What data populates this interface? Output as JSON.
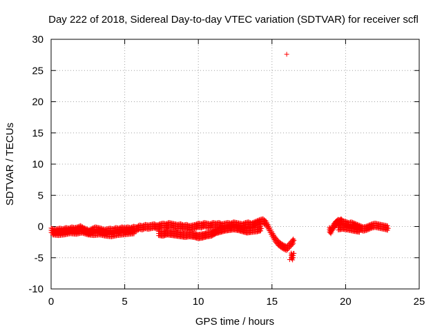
{
  "chart_data": {
    "type": "scatter",
    "title": "Day 222 of 2018, Sidereal Day-to-day VTEC variation (SDTVAR) for receiver scfl",
    "xlabel": "GPS time / hours",
    "ylabel": "SDTVAR / TECUs",
    "xlim": [
      0,
      25
    ],
    "ylim": [
      -10,
      30
    ],
    "xticks": [
      "0",
      "5",
      "10",
      "15",
      "20",
      "25"
    ],
    "yticks": [
      "-10",
      "-5",
      "0",
      "5",
      "10",
      "15",
      "20",
      "25",
      "30"
    ],
    "grid": true,
    "marker": "+",
    "color": "#ff0000",
    "series": [
      {
        "points": [
          [
            0.0,
            -0.6
          ],
          [
            0.2,
            -0.8
          ],
          [
            0.4,
            -0.7
          ],
          [
            0.6,
            -0.6
          ],
          [
            0.8,
            -0.7
          ],
          [
            1.0,
            -0.5
          ],
          [
            1.2,
            -0.6
          ],
          [
            1.4,
            -0.4
          ],
          [
            1.6,
            -0.5
          ],
          [
            1.8,
            -0.4
          ],
          [
            2.0,
            -0.2
          ],
          [
            2.2,
            -0.5
          ],
          [
            2.4,
            -0.7
          ],
          [
            2.6,
            -0.9
          ],
          [
            2.8,
            -0.6
          ],
          [
            3.0,
            -0.4
          ],
          [
            3.2,
            -0.5
          ],
          [
            3.4,
            -0.6
          ],
          [
            3.6,
            -0.8
          ],
          [
            3.8,
            -0.7
          ],
          [
            4.0,
            -0.6
          ],
          [
            4.2,
            -0.7
          ],
          [
            4.4,
            -0.5
          ],
          [
            4.6,
            -0.6
          ],
          [
            4.8,
            -0.4
          ],
          [
            5.0,
            -0.5
          ],
          [
            5.2,
            -0.4
          ],
          [
            5.4,
            -0.5
          ],
          [
            5.6,
            -0.3
          ],
          [
            5.8,
            -0.4
          ],
          [
            6.0,
            -0.1
          ],
          [
            6.2,
            -0.2
          ],
          [
            6.4,
            0.0
          ],
          [
            6.6,
            -0.1
          ],
          [
            6.8,
            0.0
          ],
          [
            7.0,
            0.1
          ],
          [
            7.2,
            -0.1
          ],
          [
            7.4,
            0.1
          ],
          [
            7.6,
            0.2
          ],
          [
            7.8,
            0.1
          ],
          [
            8.0,
            0.3
          ],
          [
            8.2,
            0.2
          ],
          [
            8.4,
            0.1
          ],
          [
            8.6,
            0.0
          ],
          [
            8.8,
            0.1
          ],
          [
            9.0,
            -0.1
          ],
          [
            9.2,
            0.0
          ],
          [
            9.4,
            -0.2
          ],
          [
            9.6,
            -0.1
          ],
          [
            9.8,
            0.0
          ],
          [
            10.0,
            0.2
          ],
          [
            10.2,
            0.1
          ],
          [
            10.4,
            0.3
          ],
          [
            10.6,
            0.2
          ],
          [
            10.8,
            0.1
          ],
          [
            11.0,
            0.3
          ],
          [
            11.2,
            0.2
          ],
          [
            11.4,
            0.3
          ],
          [
            11.6,
            0.1
          ],
          [
            11.8,
            0.2
          ],
          [
            12.0,
            0.3
          ],
          [
            12.2,
            0.2
          ],
          [
            12.4,
            0.4
          ],
          [
            12.6,
            0.3
          ],
          [
            12.8,
            0.2
          ],
          [
            13.0,
            0.1
          ],
          [
            13.2,
            0.3
          ],
          [
            13.4,
            0.4
          ],
          [
            13.6,
            0.2
          ],
          [
            13.8,
            0.4
          ],
          [
            14.0,
            0.6
          ],
          [
            14.2,
            0.8
          ],
          [
            14.4,
            0.9
          ],
          [
            14.6,
            0.5
          ],
          [
            14.8,
            -0.3
          ],
          [
            15.0,
            -1.2
          ],
          [
            15.2,
            -2.0
          ],
          [
            15.4,
            -2.6
          ],
          [
            15.6,
            -3.0
          ],
          [
            15.8,
            -3.3
          ],
          [
            16.0,
            -3.5
          ],
          [
            16.2,
            -3.0
          ],
          [
            16.4,
            -2.5
          ],
          [
            16.5,
            -2.2
          ],
          [
            7.3,
            -1.1
          ],
          [
            7.6,
            -1.2
          ],
          [
            7.9,
            -1.0
          ],
          [
            8.2,
            -1.1
          ],
          [
            8.5,
            -1.2
          ],
          [
            8.8,
            -1.3
          ],
          [
            9.1,
            -1.4
          ],
          [
            9.4,
            -1.3
          ],
          [
            9.7,
            -1.4
          ],
          [
            10.0,
            -1.6
          ],
          [
            10.3,
            -1.5
          ],
          [
            10.6,
            -1.3
          ],
          [
            10.9,
            -1.2
          ],
          [
            11.2,
            -0.8
          ],
          [
            11.5,
            -0.6
          ],
          [
            11.8,
            -0.4
          ],
          [
            12.1,
            -0.3
          ],
          [
            12.4,
            -0.2
          ],
          [
            12.7,
            -0.3
          ],
          [
            13.0,
            -0.5
          ],
          [
            13.3,
            -0.7
          ],
          [
            13.6,
            -0.6
          ],
          [
            14.0,
            -0.5
          ],
          [
            14.3,
            -0.3
          ],
          [
            0.1,
            -1.0
          ],
          [
            0.5,
            -1.1
          ],
          [
            0.9,
            -1.0
          ],
          [
            1.3,
            -0.8
          ],
          [
            1.7,
            -0.9
          ],
          [
            2.1,
            -0.7
          ],
          [
            2.5,
            -1.0
          ],
          [
            2.9,
            -1.1
          ],
          [
            3.3,
            -1.0
          ],
          [
            3.7,
            -1.2
          ],
          [
            4.1,
            -1.3
          ],
          [
            4.5,
            -1.1
          ],
          [
            4.9,
            -1.0
          ],
          [
            5.3,
            -0.9
          ],
          [
            5.7,
            -0.8
          ],
          [
            16.3,
            -4.6
          ],
          [
            16.4,
            -5.0
          ],
          [
            16.5,
            -4.3
          ],
          [
            16.2,
            -5.3
          ],
          [
            16.0,
            27.6
          ],
          [
            18.9,
            -0.5
          ],
          [
            19.0,
            -0.8
          ],
          [
            19.1,
            -0.3
          ],
          [
            19.2,
            0.1
          ],
          [
            19.3,
            0.4
          ],
          [
            19.4,
            0.6
          ],
          [
            19.5,
            0.8
          ],
          [
            19.6,
            0.7
          ],
          [
            19.7,
            0.9
          ],
          [
            19.8,
            0.6
          ],
          [
            20.0,
            0.5
          ],
          [
            20.2,
            0.3
          ],
          [
            20.4,
            0.4
          ],
          [
            20.6,
            0.2
          ],
          [
            20.8,
            0.0
          ],
          [
            21.0,
            -0.2
          ],
          [
            21.2,
            -0.4
          ],
          [
            21.4,
            -0.3
          ],
          [
            21.6,
            -0.1
          ],
          [
            21.8,
            0.1
          ],
          [
            22.0,
            0.2
          ],
          [
            22.2,
            0.1
          ],
          [
            22.4,
            0.0
          ],
          [
            22.6,
            -0.1
          ],
          [
            22.8,
            -0.2
          ],
          [
            22.9,
            -0.3
          ],
          [
            19.5,
            -0.2
          ],
          [
            19.8,
            -0.1
          ],
          [
            20.1,
            -0.2
          ],
          [
            20.5,
            -0.4
          ],
          [
            21.0,
            -0.6
          ]
        ]
      }
    ]
  }
}
